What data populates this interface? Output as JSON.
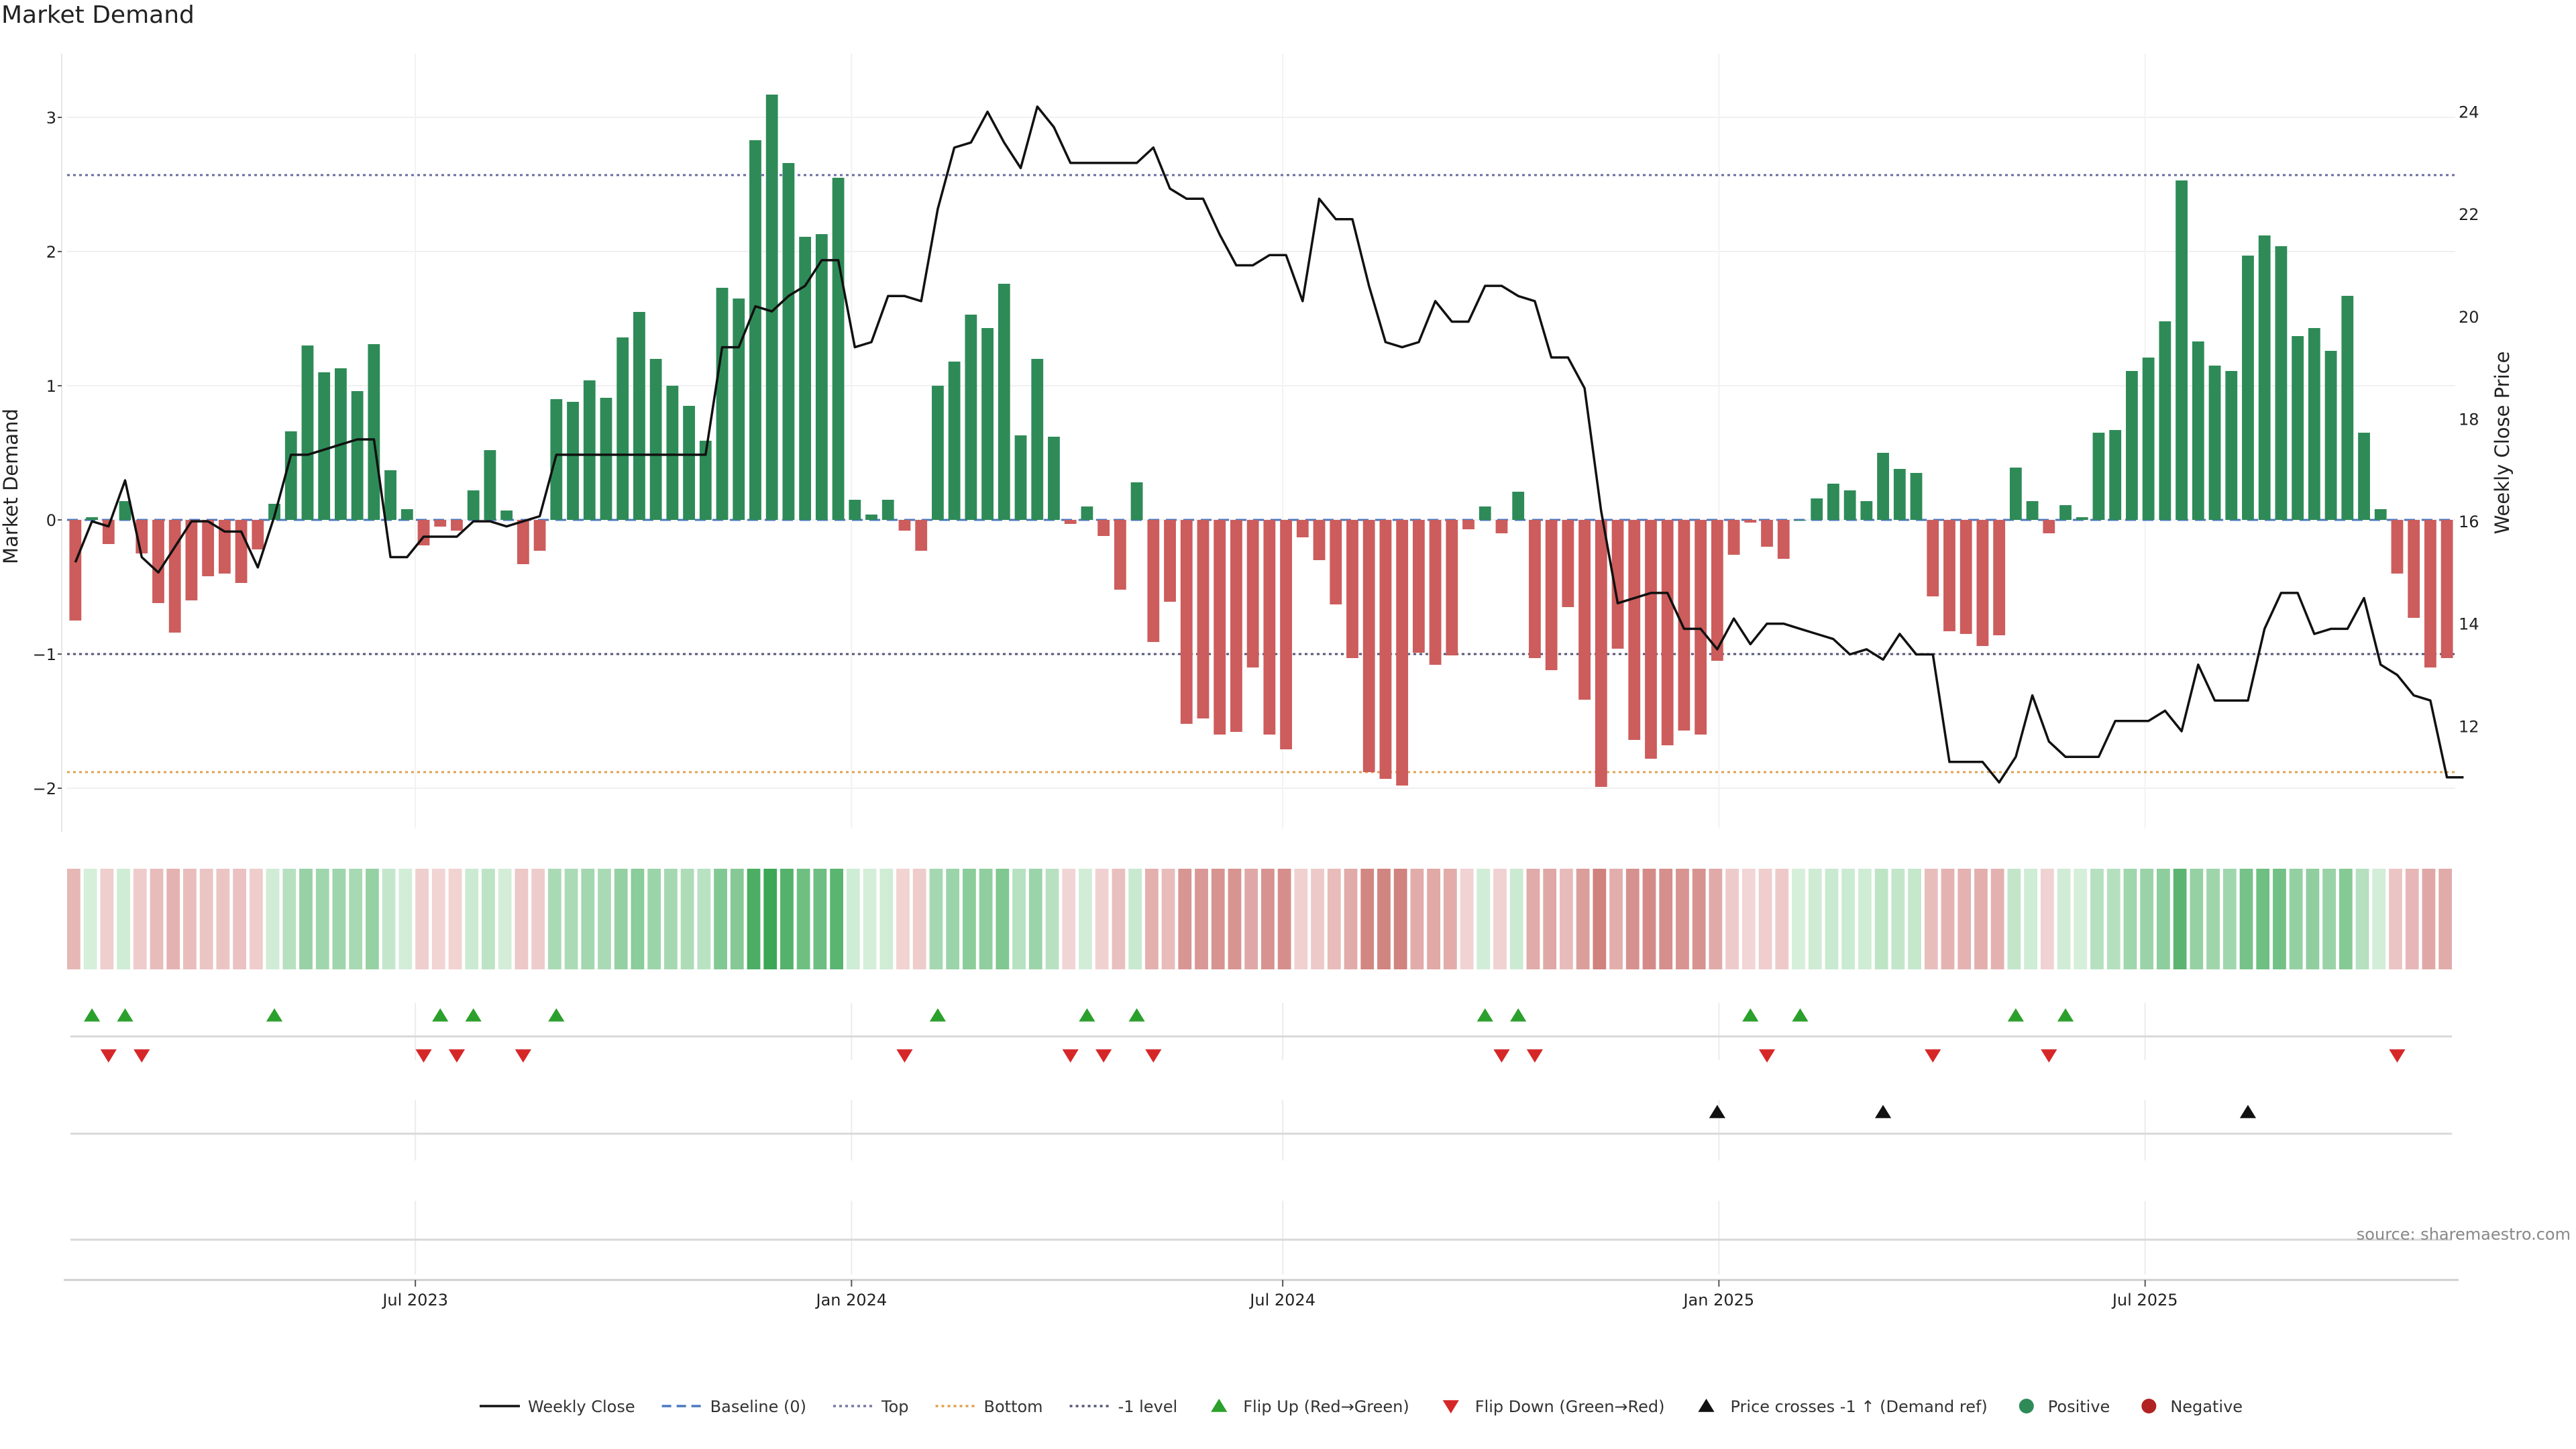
{
  "title": "Market Demand",
  "source": "source: sharemaestro.com",
  "chart_data": {
    "type": "bar",
    "title": "Market Demand",
    "ylabel_left": "Market Demand",
    "ylabel_right": "Weekly Close Price",
    "ylim_left": [
      -2.3,
      3.5
    ],
    "ylim_right": [
      10.0,
      25.2
    ],
    "yticks_left": [
      {
        "value": -2,
        "label": "−2"
      },
      {
        "value": -1,
        "label": "−1"
      },
      {
        "value": 0,
        "label": "0"
      },
      {
        "value": 1,
        "label": "1"
      },
      {
        "value": 2,
        "label": "2"
      },
      {
        "value": 3,
        "label": "3"
      }
    ],
    "yticks_right": [
      {
        "value": 12,
        "label": "12"
      },
      {
        "value": 14,
        "label": "14"
      },
      {
        "value": 16,
        "label": "16"
      },
      {
        "value": 18,
        "label": "18"
      },
      {
        "value": 20,
        "label": "20"
      },
      {
        "value": 22,
        "label": "22"
      },
      {
        "value": 24,
        "label": "24"
      }
    ],
    "xticks": [
      {
        "index": 20.5,
        "label": "Jul 2023"
      },
      {
        "index": 46.8,
        "label": "Jan 2024"
      },
      {
        "index": 72.8,
        "label": "Jul 2024"
      },
      {
        "index": 99.1,
        "label": "Jan 2025"
      },
      {
        "index": 124.8,
        "label": "Jul 2025"
      }
    ],
    "reference_lines": [
      {
        "name": "Top",
        "value": 2.57,
        "color": "#6a6aa0"
      },
      {
        "name": "Bottom",
        "value": -1.88,
        "color": "#e0a050"
      },
      {
        "name": "-1 level",
        "value": -1.0,
        "color": "#555577"
      },
      {
        "name": "Baseline (0)",
        "value": 0,
        "color": "#4a78c0"
      }
    ],
    "series": [
      {
        "name": "Market Demand",
        "type": "bar",
        "values": [
          -0.75,
          0.02,
          -0.18,
          0.14,
          -0.25,
          -0.62,
          -0.84,
          -0.6,
          -0.42,
          -0.4,
          -0.47,
          -0.22,
          0.12,
          0.66,
          1.3,
          1.1,
          1.13,
          0.96,
          1.31,
          0.37,
          0.08,
          -0.19,
          -0.05,
          -0.08,
          0.22,
          0.52,
          0.07,
          -0.33,
          -0.23,
          0.9,
          0.88,
          1.04,
          0.91,
          1.36,
          1.55,
          1.2,
          1.0,
          0.85,
          0.59,
          1.73,
          1.65,
          2.83,
          3.17,
          2.66,
          2.11,
          2.13,
          2.55,
          0.15,
          0.04,
          0.15,
          -0.08,
          -0.23,
          1.0,
          1.18,
          1.53,
          1.43,
          1.76,
          0.63,
          1.2,
          0.62,
          -0.03,
          0.1,
          -0.12,
          -0.52,
          0.28,
          -0.91,
          -0.61,
          -1.52,
          -1.48,
          -1.6,
          -1.58,
          -1.1,
          -1.6,
          -1.71,
          -0.13,
          -0.3,
          -0.63,
          -1.03,
          -1.88,
          -1.93,
          -1.98,
          -0.99,
          -1.08,
          -1.01,
          -0.07,
          0.1,
          -0.1,
          0.21,
          -1.03,
          -1.12,
          -0.65,
          -1.34,
          -1.99,
          -0.96,
          -1.64,
          -1.78,
          -1.68,
          -1.57,
          -1.6,
          -1.05,
          -0.26,
          -0.02,
          -0.2,
          -0.29,
          0.0,
          0.16,
          0.27,
          0.22,
          0.14,
          0.5,
          0.38,
          0.35,
          -0.57,
          -0.83,
          -0.85,
          -0.94,
          -0.86,
          0.39,
          0.14,
          -0.1,
          0.11,
          0.02,
          0.65,
          0.67,
          1.11,
          1.21,
          1.48,
          2.53,
          1.33,
          1.15,
          1.11,
          1.97,
          2.12,
          2.04,
          1.37,
          1.43,
          1.26,
          1.67,
          0.65,
          0.08,
          -0.4,
          -0.73,
          -1.1,
          -1.03
        ]
      },
      {
        "name": "Weekly Close",
        "type": "line",
        "values": [
          15.2,
          16.0,
          15.9,
          16.8,
          15.3,
          15.0,
          15.5,
          16.0,
          16.0,
          15.8,
          15.8,
          15.1,
          16.1,
          17.3,
          17.3,
          17.4,
          17.5,
          17.6,
          17.6,
          15.3,
          15.3,
          15.7,
          15.7,
          15.7,
          16.0,
          16.0,
          15.9,
          16.0,
          16.1,
          17.3,
          17.3,
          17.3,
          17.3,
          17.3,
          17.3,
          17.3,
          17.3,
          17.3,
          17.3,
          19.4,
          19.4,
          20.2,
          20.1,
          20.4,
          20.6,
          21.1,
          21.1,
          19.4,
          19.5,
          20.4,
          20.4,
          20.3,
          22.1,
          23.3,
          23.4,
          24.0,
          23.4,
          22.9,
          24.1,
          23.7,
          23.0,
          23.0,
          23.0,
          23.0,
          23.0,
          23.3,
          22.5,
          22.3,
          22.3,
          21.6,
          21.0,
          21.0,
          21.2,
          21.2,
          20.3,
          22.3,
          21.9,
          21.9,
          20.6,
          19.5,
          19.4,
          19.5,
          20.3,
          19.9,
          19.9,
          20.6,
          20.6,
          20.4,
          20.3,
          19.2,
          19.2,
          18.6,
          16.2,
          14.4,
          14.5,
          14.6,
          14.6,
          13.9,
          13.9,
          13.5,
          14.1,
          13.6,
          14.0,
          14.0,
          13.9,
          13.8,
          13.7,
          13.4,
          13.5,
          13.3,
          13.8,
          13.4,
          13.4,
          11.3,
          11.3,
          11.3,
          10.9,
          11.4,
          12.6,
          11.7,
          11.4,
          11.4,
          11.4,
          12.1,
          12.1,
          12.1,
          12.3,
          11.9,
          13.2,
          12.5,
          12.5,
          12.5,
          13.9,
          14.6,
          14.6,
          13.8,
          13.9,
          13.9,
          14.5,
          13.2,
          13.0,
          12.6,
          12.5,
          11.0,
          11.0
        ]
      }
    ],
    "markers": {
      "flip_up_indices": [
        1,
        3,
        12,
        22,
        24,
        29,
        52,
        61,
        64,
        85,
        87,
        101,
        104,
        117,
        120
      ],
      "flip_down_indices": [
        2,
        4,
        21,
        23,
        27,
        50,
        60,
        62,
        65,
        86,
        88,
        102,
        112,
        119,
        140
      ],
      "price_cross_indices": [
        99,
        109,
        131
      ]
    },
    "legend": [
      {
        "label": "Weekly Close",
        "kind": "line-solid",
        "color": "#111111"
      },
      {
        "label": "Baseline (0)",
        "kind": "line-dash",
        "color": "#4a78c0"
      },
      {
        "label": "Top",
        "kind": "line-dot",
        "color": "#7777aa"
      },
      {
        "label": "Bottom",
        "kind": "line-dot",
        "color": "#e0a050"
      },
      {
        "label": "-1 level",
        "kind": "line-dot",
        "color": "#555577"
      },
      {
        "label": "Flip Up (Red→Green)",
        "kind": "tri-up",
        "color": "#2ca02c"
      },
      {
        "label": "Flip Down (Green→Red)",
        "kind": "tri-down",
        "color": "#d62728"
      },
      {
        "label": "Price crosses -1 ↑ (Demand ref)",
        "kind": "tri-up",
        "color": "#111111"
      },
      {
        "label": "Positive",
        "kind": "circle",
        "color": "#2e8b57"
      },
      {
        "label": "Negative",
        "kind": "circle",
        "color": "#b22222"
      }
    ],
    "colors": {
      "positive": "#2e8b57",
      "negative": "#cd5c5c",
      "line": "#111111"
    }
  }
}
